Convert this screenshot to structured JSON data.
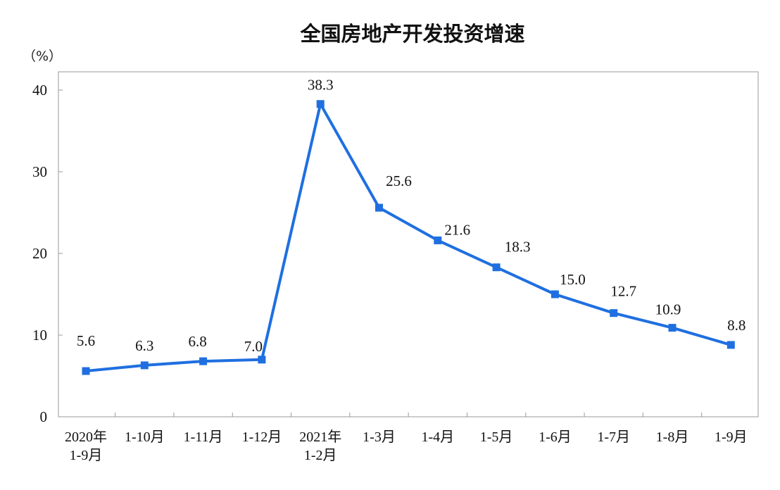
{
  "chart_data": {
    "type": "line",
    "title": "全国房地产开发投资增速",
    "unit_label": "（%）",
    "categories": [
      [
        "2020年",
        "1-9月"
      ],
      [
        "1-10月"
      ],
      [
        "1-11月"
      ],
      [
        "1-12月"
      ],
      [
        "2021年",
        "1-2月"
      ],
      [
        "1-3月"
      ],
      [
        "1-4月"
      ],
      [
        "1-5月"
      ],
      [
        "1-6月"
      ],
      [
        "1-7月"
      ],
      [
        "1-8月"
      ],
      [
        "1-9月"
      ]
    ],
    "values": [
      5.6,
      6.3,
      6.8,
      7.0,
      38.3,
      25.6,
      21.6,
      18.3,
      15.0,
      12.7,
      10.9,
      8.8
    ],
    "value_labels": [
      "5.6",
      "6.3",
      "6.8",
      "7.0",
      "38.3",
      "25.6",
      "21.6",
      "18.3",
      "15.0",
      "12.7",
      "10.9",
      "8.8"
    ],
    "ylim": [
      0,
      40
    ],
    "yticks": [
      "0",
      "10",
      "20",
      "30",
      "40"
    ],
    "grid": false,
    "line_color": "#1f6fe0",
    "marker": "square"
  }
}
